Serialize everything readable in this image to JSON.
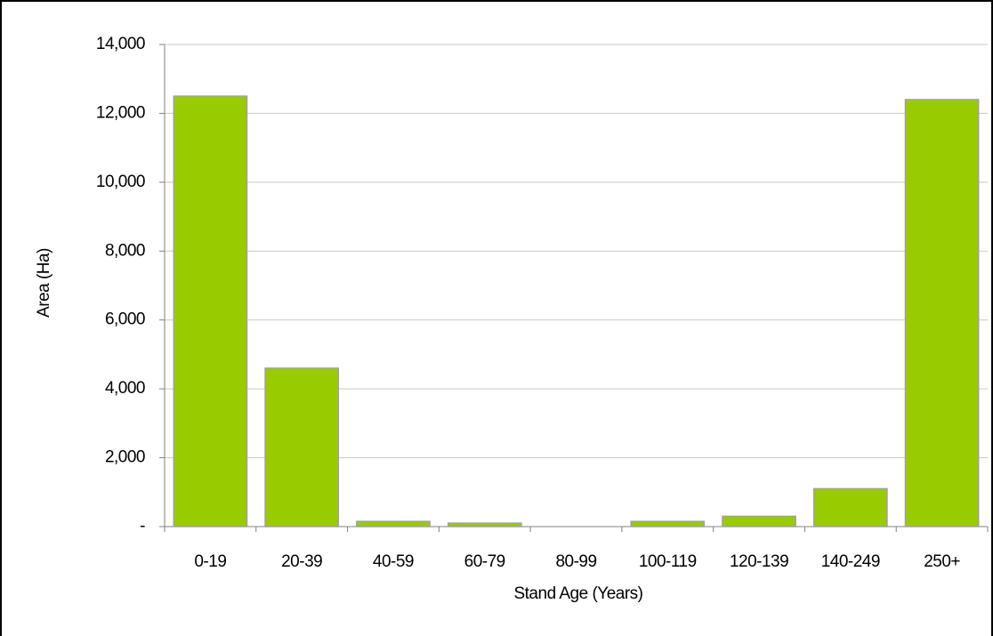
{
  "chart_data": {
    "type": "bar",
    "categories": [
      "0-19",
      "20-39",
      "40-59",
      "60-79",
      "80-99",
      "100-119",
      "120-139",
      "140-249",
      "250+"
    ],
    "values": [
      12500,
      4600,
      150,
      100,
      0,
      150,
      300,
      1100,
      12400
    ],
    "color": "#99cc00",
    "x_label": "Stand Age (Years)",
    "y_label": "Area (Ha)",
    "ylim": [
      0,
      14000
    ],
    "yticks": [
      {
        "value": 0,
        "label": "-"
      },
      {
        "value": 2000,
        "label": "2,000"
      },
      {
        "value": 4000,
        "label": "4,000"
      },
      {
        "value": 6000,
        "label": "6,000"
      },
      {
        "value": 8000,
        "label": "8,000"
      },
      {
        "value": 10000,
        "label": "10,000"
      },
      {
        "value": 12000,
        "label": "12,000"
      },
      {
        "value": 14000,
        "label": "14,000"
      }
    ],
    "grid": true
  }
}
